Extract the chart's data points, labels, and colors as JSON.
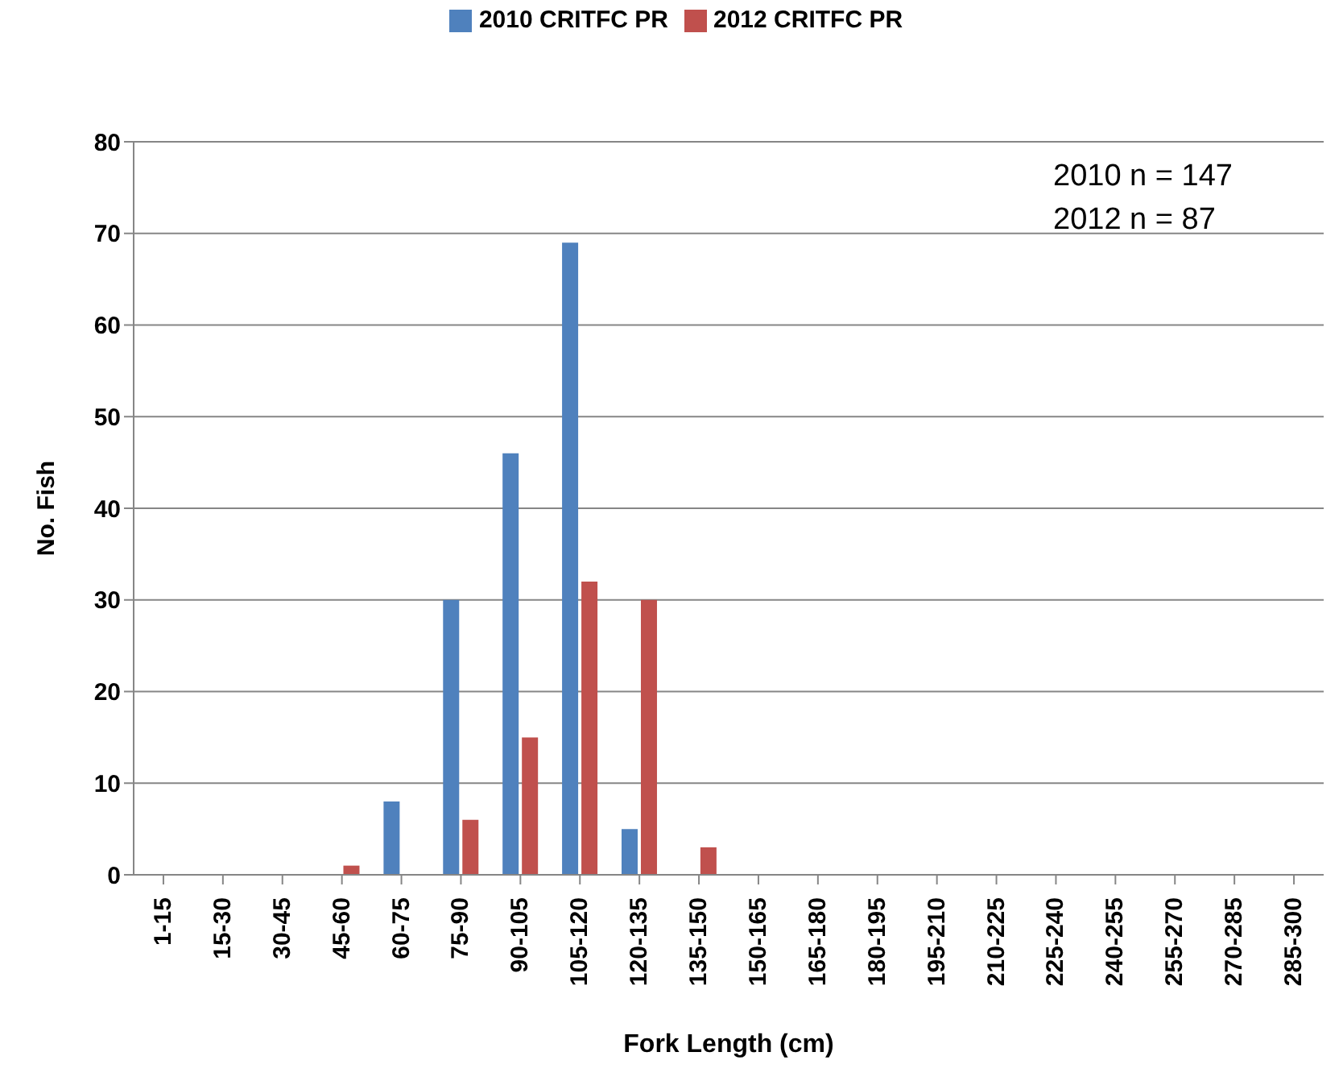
{
  "chart_data": {
    "type": "bar",
    "xlabel": "Fork Length (cm)",
    "ylabel": "No. Fish",
    "categories": [
      "1-15",
      "15-30",
      "30-45",
      "45-60",
      "60-75",
      "75-90",
      "90-105",
      "105-120",
      "120-135",
      "135-150",
      "150-165",
      "165-180",
      "180-195",
      "195-210",
      "210-225",
      "225-240",
      "240-255",
      "255-270",
      "270-285",
      "285-300"
    ],
    "series": [
      {
        "name": "2010 CRITFC PR",
        "color": "#4f81bd",
        "values": [
          0,
          0,
          0,
          0,
          8,
          30,
          46,
          69,
          5,
          0,
          0,
          0,
          0,
          0,
          0,
          0,
          0,
          0,
          0,
          0
        ]
      },
      {
        "name": "2012 CRITFC PR",
        "color": "#c0504d",
        "values": [
          0,
          0,
          0,
          1,
          0,
          6,
          15,
          32,
          30,
          3,
          0,
          0,
          0,
          0,
          0,
          0,
          0,
          0,
          0,
          0
        ]
      }
    ],
    "ylim": [
      0,
      80
    ],
    "yticks": [
      0,
      10,
      20,
      30,
      40,
      50,
      60,
      70,
      80
    ],
    "grid": "y",
    "legend": "top",
    "annotations": [
      "2010 n = 147",
      "2012 n = 87"
    ]
  }
}
